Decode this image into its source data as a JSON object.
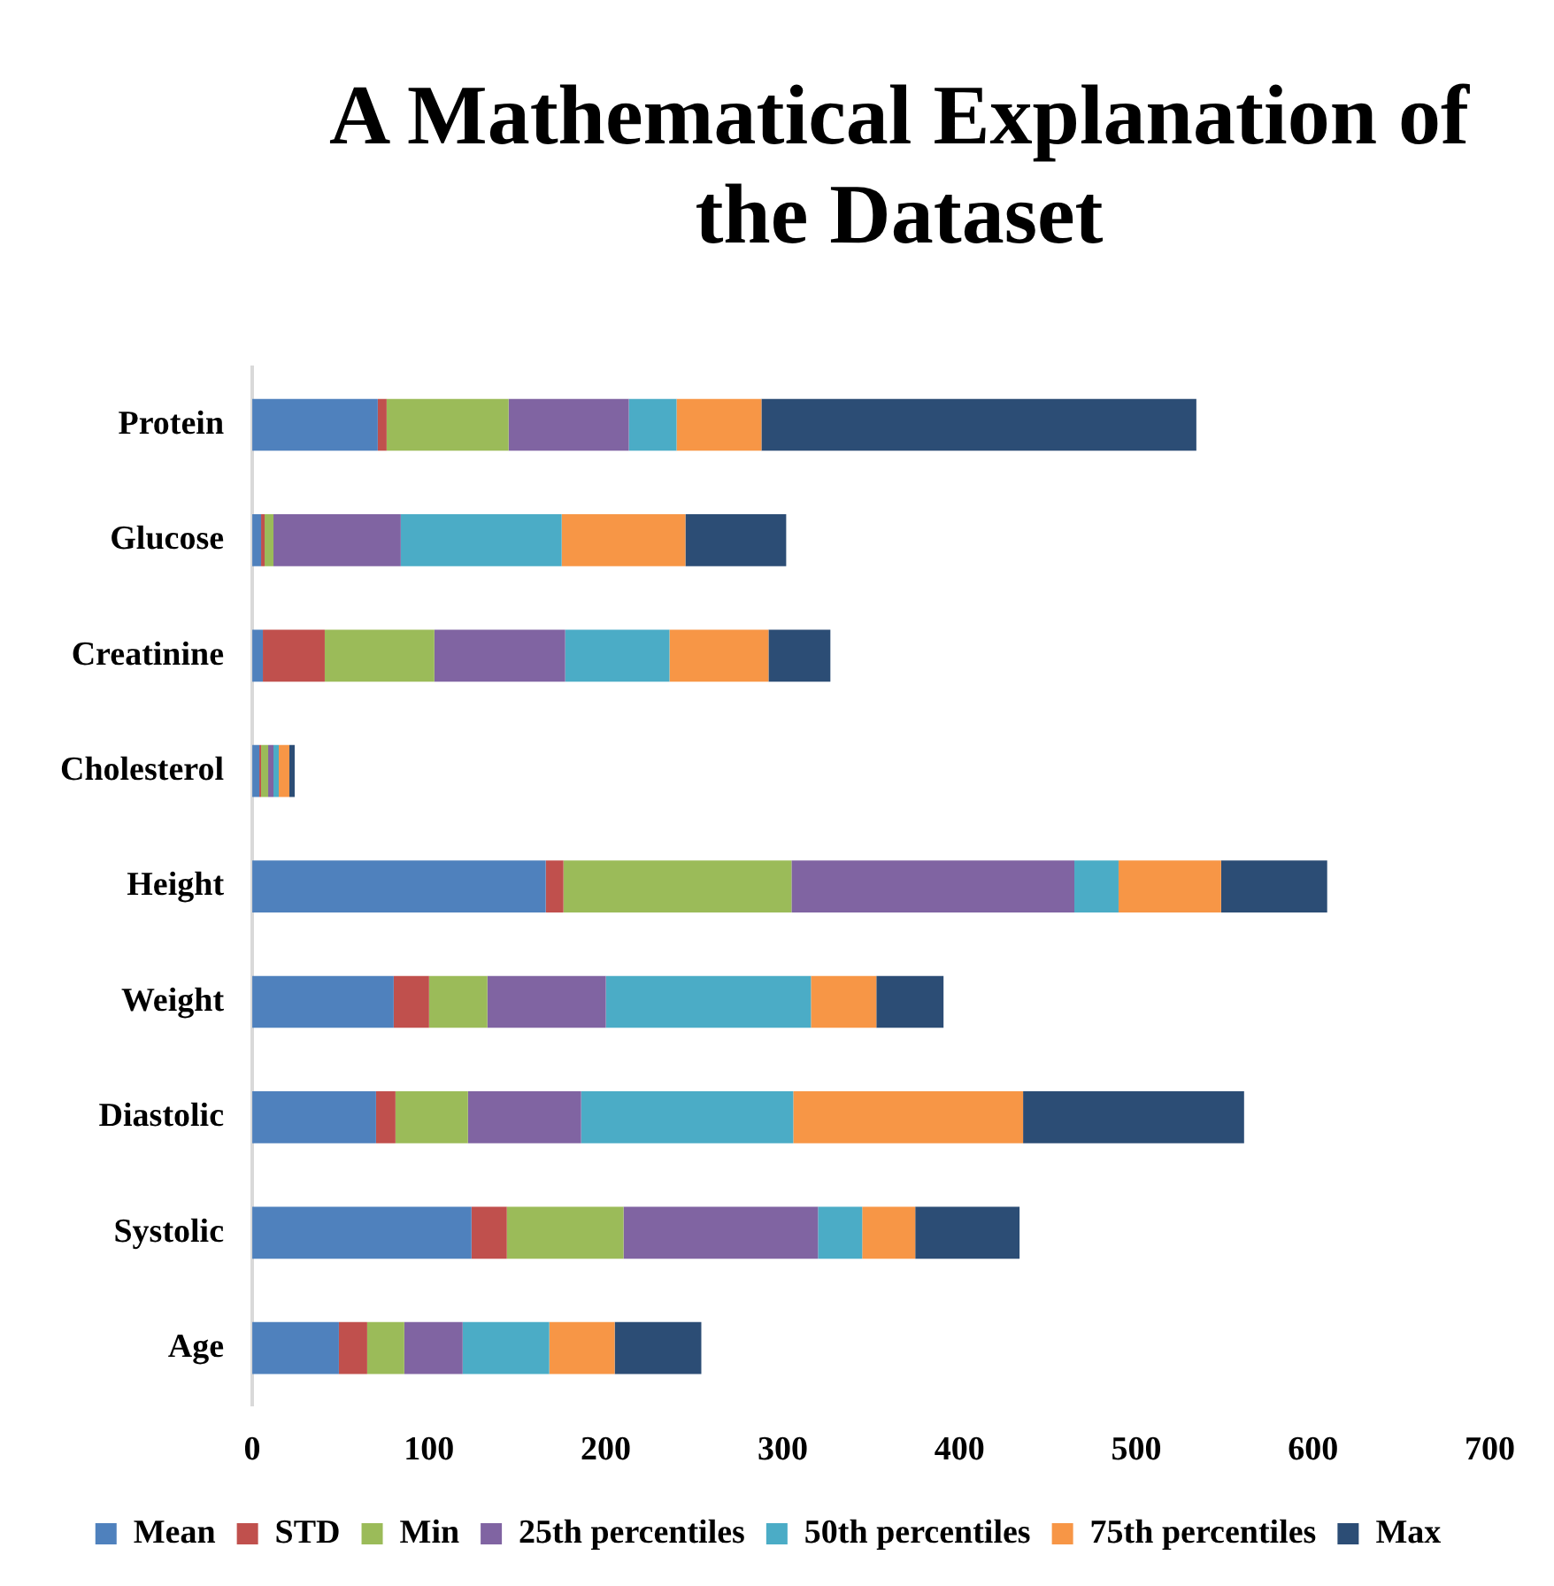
{
  "chart_data": {
    "type": "bar",
    "title": "A Mathematical Explanation of the Dataset",
    "orientation": "horizontal",
    "stacked": true,
    "legend": "bottom",
    "grid": false,
    "categories": [
      "Protein",
      "Glucose",
      "Creatinine",
      "Cholesterol",
      "Height",
      "Weight",
      "Diastolic",
      "Systolic",
      "Age"
    ],
    "xlim": [
      0,
      700
    ],
    "xticks": [
      0,
      100,
      200,
      300,
      400,
      500,
      600,
      700
    ],
    "series": [
      {
        "name": "Mean",
        "color": "#4f81bd",
        "values": [
          71,
          5,
          6,
          4,
          166,
          80,
          70,
          124,
          49
        ]
      },
      {
        "name": "STD",
        "color": "#c0504d",
        "values": [
          5,
          2,
          35,
          1,
          10,
          20,
          11,
          20,
          16
        ]
      },
      {
        "name": "Min",
        "color": "#9bbb59",
        "values": [
          69,
          5,
          62,
          4,
          129,
          33,
          41,
          66,
          21
        ]
      },
      {
        "name": "25th percentiles",
        "color": "#8064a2",
        "values": [
          68,
          72,
          74,
          3,
          160,
          67,
          64,
          110,
          33
        ]
      },
      {
        "name": "50th percentiles",
        "color": "#4bacc6",
        "values": [
          27,
          91,
          59,
          3,
          25,
          116,
          120,
          25,
          49
        ]
      },
      {
        "name": "75th percentiles",
        "color": "#f79646",
        "values": [
          48,
          70,
          56,
          6,
          58,
          37,
          130,
          30,
          37
        ]
      },
      {
        "name": "Max",
        "color": "#2c4d75",
        "values": [
          246,
          57,
          35,
          3,
          60,
          38,
          125,
          59,
          49
        ]
      }
    ]
  }
}
